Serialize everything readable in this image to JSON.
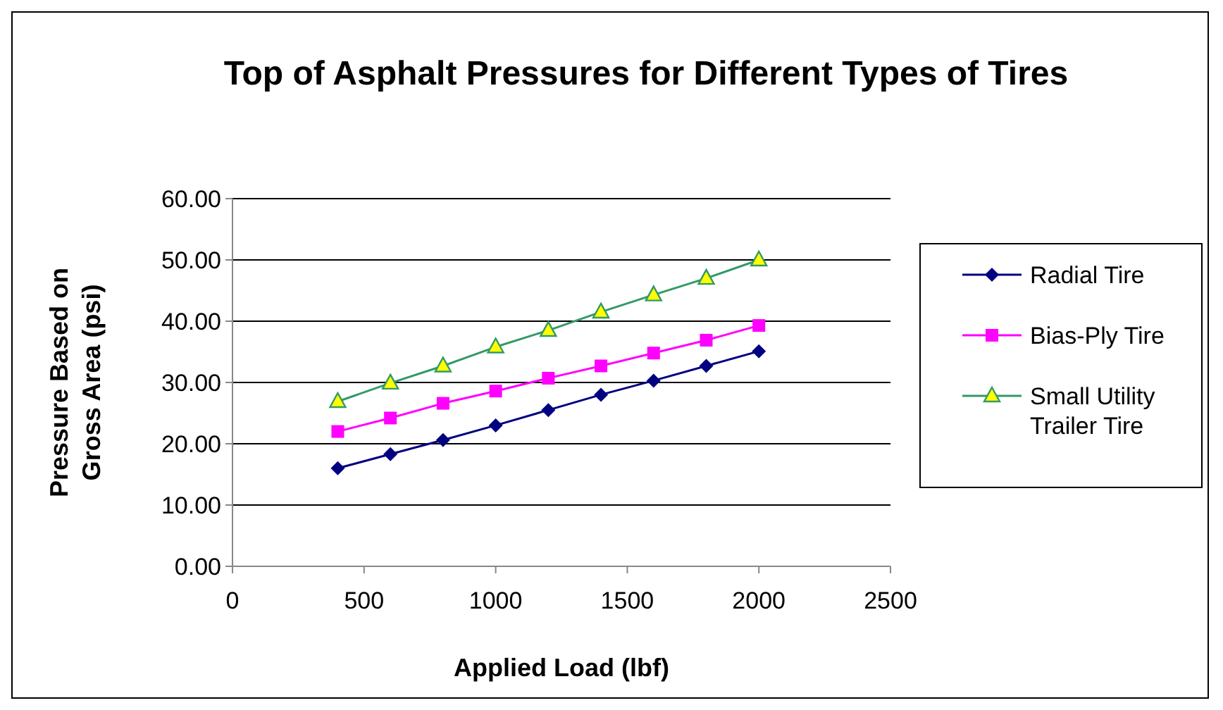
{
  "chart_data": {
    "type": "line",
    "title": "Top of Asphalt Pressures for Different Types of Tires",
    "xlabel": "Applied Load (lbf)",
    "ylabel": "Pressure Based on Gross Area (psi)",
    "x": [
      400,
      600,
      800,
      1000,
      1200,
      1400,
      1600,
      1800,
      2000
    ],
    "series": [
      {
        "name": "Radial Tire",
        "color": "#000080",
        "marker": "diamond",
        "values": [
          16,
          18.3,
          20.6,
          23,
          25.5,
          28,
          30.3,
          32.7,
          35.1
        ]
      },
      {
        "name": "Bias-Ply Tire",
        "color": "#ff00ff",
        "marker": "square",
        "values": [
          22,
          24.2,
          26.6,
          28.6,
          30.7,
          32.7,
          34.8,
          36.9,
          39.3
        ]
      },
      {
        "name": "Small Utility Trailer Tire",
        "color": "#339966",
        "marker": "triangle",
        "values": [
          26.9,
          29.9,
          32.7,
          35.8,
          38.5,
          41.5,
          44.3,
          47,
          50
        ]
      }
    ],
    "xlim": [
      0,
      2500
    ],
    "xticks": [
      0,
      500,
      1000,
      1500,
      2000,
      2500
    ],
    "ylim": [
      0,
      60
    ],
    "yticks": [
      {
        "value": 0,
        "label": "0.00"
      },
      {
        "value": 10,
        "label": "10.00"
      },
      {
        "value": 20,
        "label": "20.00"
      },
      {
        "value": 30,
        "label": "30.00"
      },
      {
        "value": 40,
        "label": "40.00"
      },
      {
        "value": 50,
        "label": "50.00"
      },
      {
        "value": 60,
        "label": "60.00"
      }
    ],
    "grid": "y",
    "legend": "right",
    "line_style": "solid"
  }
}
